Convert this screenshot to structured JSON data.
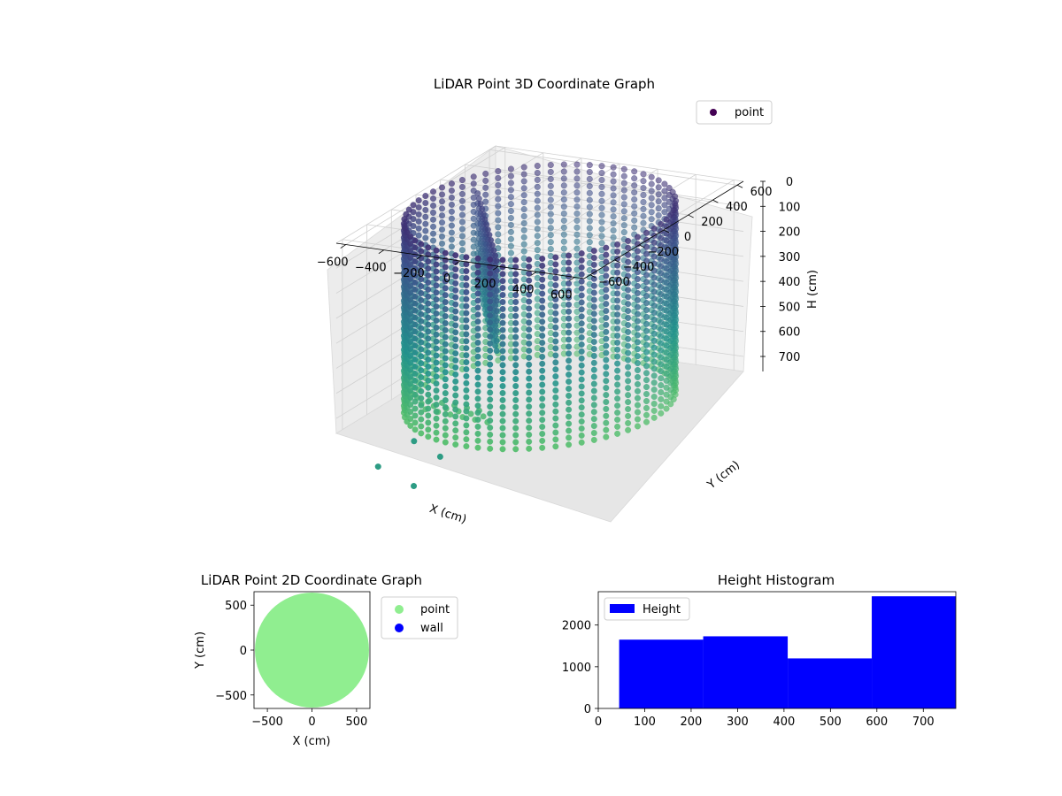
{
  "chart_data": [
    {
      "type": "scatter",
      "title": "LiDAR Point 3D Coordinate Graph",
      "xlabel": "X (cm)",
      "ylabel": "Y (cm)",
      "zlabel": "H (cm)",
      "xticks": [
        "−600",
        "−400",
        "−200",
        "0",
        "200",
        "400",
        "600"
      ],
      "yticks": [
        "−600",
        "−400",
        "−200",
        "0",
        "200",
        "400",
        "600"
      ],
      "zticks": [
        "0",
        "100",
        "200",
        "300",
        "400",
        "500",
        "600",
        "700"
      ],
      "xlim": [
        -650,
        650
      ],
      "ylim": [
        -650,
        650
      ],
      "zlim": [
        0,
        760
      ],
      "z_inverted": true,
      "legend": [
        "point"
      ],
      "legend_position": "upper right",
      "colormap": "viridis",
      "colors": {
        "point_legend": "#440154"
      },
      "series": [
        {
          "name": "point",
          "description_values": {
            "wall_ring_radius": 600,
            "wall_height_range": [
              0,
              760
            ],
            "stray_points": [
              {
                "x": -300,
                "y": -560,
                "h": 780
              },
              {
                "x": -150,
                "y": -580,
                "h": 820
              },
              {
                "x": -450,
                "y": -620,
                "h": 880
              },
              {
                "x": -250,
                "y": -640,
                "h": 930
              }
            ]
          }
        }
      ]
    },
    {
      "type": "scatter",
      "title": "LiDAR Point 2D Coordinate Graph",
      "xlabel": "X (cm)",
      "ylabel": "Y (cm)",
      "xticks": [
        "−500",
        "0",
        "500"
      ],
      "yticks": [
        "−500",
        "0",
        "500"
      ],
      "xlim": [
        -650,
        650
      ],
      "ylim": [
        -650,
        650
      ],
      "legend": [
        "point",
        "wall"
      ],
      "legend_position": "outside right",
      "colors": {
        "point": "#90ee90",
        "wall": "#0000ff"
      },
      "series": [
        {
          "name": "point",
          "shape": "disc",
          "radius": 640
        },
        {
          "name": "wall",
          "values": []
        }
      ]
    },
    {
      "type": "bar",
      "title": "Height Histogram",
      "xticks": [
        "0",
        "100",
        "200",
        "300",
        "400",
        "500",
        "600",
        "700"
      ],
      "yticks": [
        "0",
        "1000",
        "2000"
      ],
      "xlim": [
        0,
        770
      ],
      "ylim": [
        0,
        2800
      ],
      "legend": [
        "Height"
      ],
      "legend_position": "upper left",
      "colors": {
        "bar": "#0000ff"
      },
      "series": [
        {
          "name": "Height",
          "bins": [
            {
              "from": 45,
              "to": 226,
              "count": 1650
            },
            {
              "from": 226,
              "to": 408,
              "count": 1730
            },
            {
              "from": 408,
              "to": 589,
              "count": 1200
            },
            {
              "from": 589,
              "to": 770,
              "count": 2690
            }
          ]
        }
      ]
    }
  ]
}
